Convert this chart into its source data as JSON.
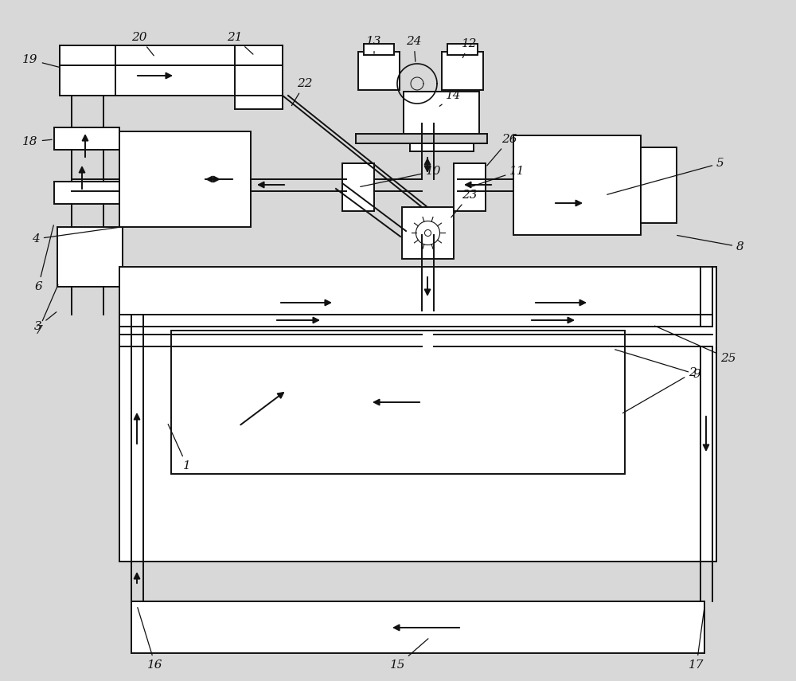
{
  "bg_color": "#d8d8d8",
  "line_color": "#111111",
  "lw": 1.4,
  "fig_width": 10.0,
  "fig_height": 8.55
}
